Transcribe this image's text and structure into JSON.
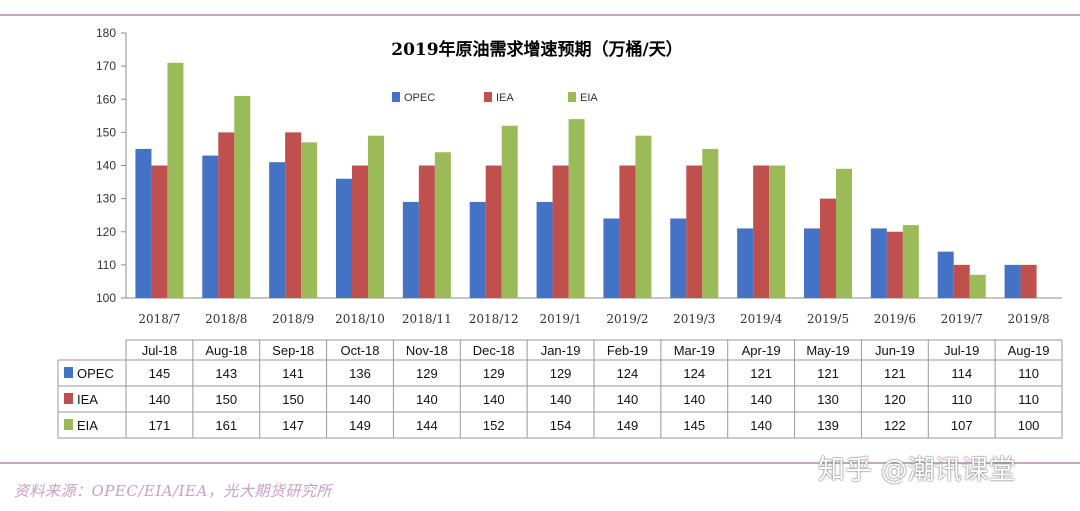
{
  "chart_data": {
    "type": "bar",
    "title": "2019年原油需求增速预期（万桶/天）",
    "categories": [
      "2018/7",
      "2018/8",
      "2018/9",
      "2018/10",
      "2018/11",
      "2018/12",
      "2019/1",
      "2019/2",
      "2019/3",
      "2019/4",
      "2019/5",
      "2019/6",
      "2019/7",
      "2019/8"
    ],
    "table_headers": [
      "Jul-18",
      "Aug-18",
      "Sep-18",
      "Oct-18",
      "Nov-18",
      "Dec-18",
      "Jan-19",
      "Feb-19",
      "Mar-19",
      "Apr-19",
      "May-19",
      "Jun-19",
      "Jul-19",
      "Aug-19"
    ],
    "series": [
      {
        "name": "OPEC",
        "color": "#4472c4",
        "values": [
          145,
          143,
          141,
          136,
          129,
          129,
          129,
          124,
          124,
          121,
          121,
          121,
          114,
          110
        ]
      },
      {
        "name": "IEA",
        "color": "#c0504d",
        "values": [
          140,
          150,
          150,
          140,
          140,
          140,
          140,
          140,
          140,
          140,
          130,
          120,
          110,
          110
        ]
      },
      {
        "name": "EIA",
        "color": "#9bbb59",
        "values": [
          171,
          161,
          147,
          149,
          144,
          152,
          154,
          149,
          145,
          140,
          139,
          122,
          107,
          100
        ]
      }
    ],
    "ylim": [
      100,
      180
    ],
    "yticks": [
      100,
      110,
      120,
      130,
      140,
      150,
      160,
      170,
      180
    ],
    "legend_position": "top-center",
    "grid": false
  },
  "source_note": "资料来源：OPEC/EIA/IEA，光大期货研究所",
  "watermark": "知乎 @潮讯课堂"
}
